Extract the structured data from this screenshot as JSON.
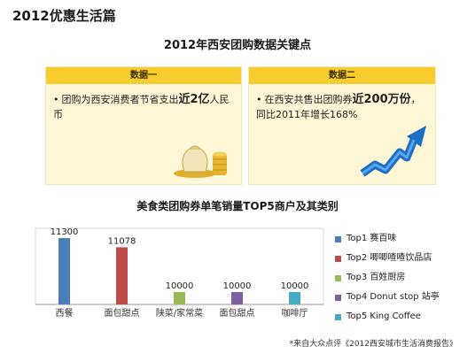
{
  "page_title": "2012优惠生活篇",
  "main_title": "2012年西安团购数据关键点",
  "panels": [
    {
      "header": "数据一",
      "bullet": "•",
      "text_a": "团购为西安消费者节省支出",
      "text_bold": "近2亿",
      "text_b": "人民币"
    },
    {
      "header": "数据二",
      "bullet": "•",
      "text_a": "在西安共售出团购券",
      "text_bold": "近200万份",
      "text_b": "，同比2011年增长168%"
    }
  ],
  "footnote": "*来自大众点评《2012西安城市生活消费报告》",
  "colors": {
    "panel_header": "#f6cc2f",
    "panel_bg": "#fdf7d8"
  },
  "chart_data": {
    "type": "bar",
    "title": "美食类团购券单笔销量TOP5商户及其类别",
    "categories": [
      "西餐",
      "面包甜点",
      "陕菜/家常菜",
      "面包甜点",
      "咖啡厅"
    ],
    "values": [
      11300,
      11078,
      10000,
      10000,
      10000
    ],
    "data_labels": [
      "11300",
      "11078",
      "10000",
      "10000",
      "10000"
    ],
    "colors": [
      "#4a7ebb",
      "#be4b48",
      "#98b954",
      "#7d60a0",
      "#46aac5"
    ],
    "legend": [
      "Top1 赛百味",
      "Top2 唧唧喳喳饮品店",
      "Top3 百姓厨房",
      "Top4 Donut stop 站亭",
      "Top5 King Coffee"
    ],
    "legend_position": "right",
    "ylim": [
      9700,
      11450
    ],
    "grid": false
  }
}
